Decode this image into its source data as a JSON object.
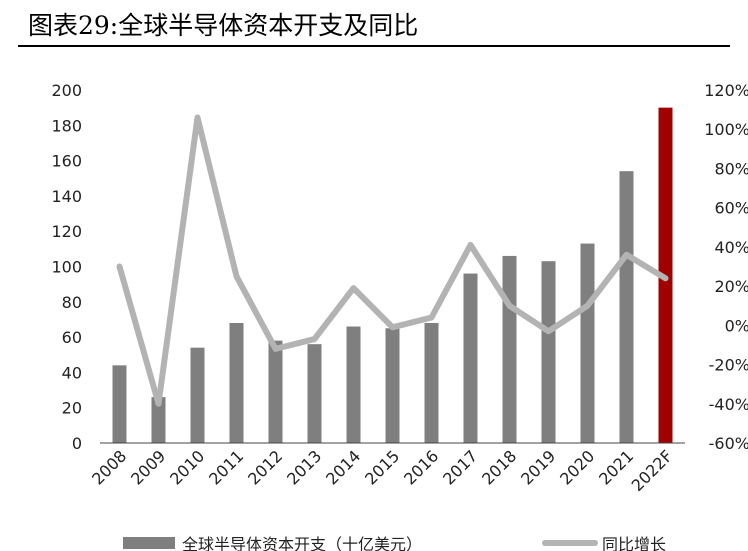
{
  "title": "图表29:全球半导体资本开支及同比",
  "chart_data": {
    "type": "bar",
    "categories": [
      "2008",
      "2009",
      "2010",
      "2011",
      "2012",
      "2013",
      "2014",
      "2015",
      "2016",
      "2017",
      "2018",
      "2019",
      "2020",
      "2021",
      "2022F"
    ],
    "series": [
      {
        "name": "全球半导体资本开支（十亿美元）",
        "type": "bar",
        "axis": "left",
        "values": [
          44,
          26,
          54,
          68,
          58,
          56,
          66,
          65,
          68,
          96,
          106,
          103,
          113,
          154,
          190
        ],
        "color": "#7f7f7f",
        "highlight_color": "#a00000",
        "highlight_index": 14
      },
      {
        "name": "同比增长",
        "type": "line",
        "axis": "right",
        "values": [
          30,
          -40,
          106,
          25,
          -12,
          -7,
          19,
          -1,
          4,
          41,
          10,
          -3,
          10,
          36,
          24
        ],
        "color": "#b3b3b3"
      }
    ],
    "y_left": {
      "min": 0,
      "max": 200,
      "ticks": [
        "0",
        "20",
        "40",
        "60",
        "80",
        "100",
        "120",
        "140",
        "160",
        "180",
        "200"
      ]
    },
    "y_right": {
      "min": -60,
      "max": 120,
      "ticks": [
        "-60%",
        "-40%",
        "-20%",
        "0%",
        "20%",
        "40%",
        "60%",
        "80%",
        "100%",
        "120%"
      ]
    },
    "grid": false,
    "legend_position": "bottom"
  }
}
